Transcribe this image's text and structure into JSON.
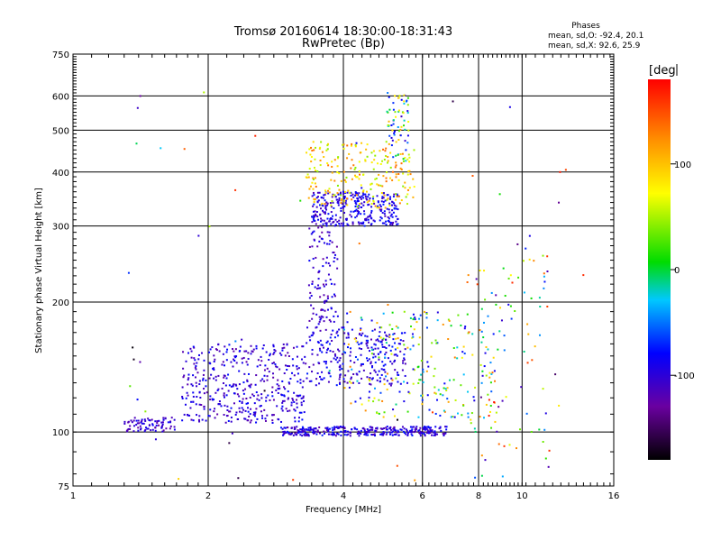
{
  "chart_data": {
    "type": "scatter",
    "title_line1": "Tromsø 20160614 18:30:00-18:31:43",
    "title_line2": "RwPretec (Bp)",
    "stats": {
      "heading": "Phases",
      "o_line": "mean, sd,O: -92.4, 20.1",
      "x_line": "mean, sd,X:  92.6, 25.9"
    },
    "xlabel": "Frequency [MHz]",
    "ylabel": "Stationary phase Virtual Height [km]",
    "x_scale": "log",
    "y_scale": "log",
    "xlim": [
      1,
      16
    ],
    "ylim": [
      75,
      750
    ],
    "xticks": [
      {
        "value": 1,
        "label": "1"
      },
      {
        "value": 2,
        "label": "2"
      },
      {
        "value": 4,
        "label": "4"
      },
      {
        "value": 6,
        "label": "6"
      },
      {
        "value": 8,
        "label": "8"
      },
      {
        "value": 10,
        "label": "10"
      },
      {
        "value": 16,
        "label": "16"
      }
    ],
    "yticks": [
      {
        "value": 75,
        "label": "75"
      },
      {
        "value": 100,
        "label": "100"
      },
      {
        "value": 200,
        "label": "200"
      },
      {
        "value": 300,
        "label": "300"
      },
      {
        "value": 400,
        "label": "400"
      },
      {
        "value": 500,
        "label": "500"
      },
      {
        "value": 600,
        "label": "600"
      },
      {
        "value": 750,
        "label": "750"
      }
    ],
    "grid": true,
    "colorbar": {
      "label": "[deg",
      "range": [
        -180,
        180
      ],
      "ticks": [
        {
          "value": 100,
          "label": "100"
        },
        {
          "value": 0,
          "label": "0"
        },
        {
          "value": -100,
          "label": "-100"
        }
      ]
    },
    "clusters": [
      {
        "name": "low-E trace",
        "x": [
          1.3,
          1.7
        ],
        "y": [
          100,
          108
        ],
        "n": 80,
        "phase": [
          -130,
          -80
        ]
      },
      {
        "name": "E-region rise",
        "x": [
          1.75,
          3.3
        ],
        "y": [
          105,
          160
        ],
        "n": 420,
        "phase": [
          -125,
          -75
        ]
      },
      {
        "name": "Es 100 km band",
        "x": [
          2.9,
          6.8
        ],
        "y": [
          98,
          103
        ],
        "n": 320,
        "phase": [
          -125,
          -70
        ]
      },
      {
        "name": "F1 150 km",
        "x": [
          3.3,
          5.5
        ],
        "y": [
          128,
          175
        ],
        "n": 260,
        "phase": [
          -120,
          -70
        ]
      },
      {
        "name": "F cusp",
        "x": [
          3.35,
          3.9
        ],
        "y": [
          175,
          320
        ],
        "n": 110,
        "phase": [
          -130,
          -80
        ]
      },
      {
        "name": "F2 trace",
        "x": [
          3.4,
          5.3
        ],
        "y": [
          300,
          360
        ],
        "n": 300,
        "phase": [
          -120,
          -70
        ]
      },
      {
        "name": "F2 X-mode",
        "x": [
          3.3,
          5.8
        ],
        "y": [
          330,
          470
        ],
        "n": 220,
        "phase": [
          40,
          140
        ]
      },
      {
        "name": "F2 top",
        "x": [
          5.0,
          5.6
        ],
        "y": [
          420,
          610
        ],
        "n": 70,
        "phase": [
          -110,
          120
        ]
      },
      {
        "name": "mid scatter",
        "x": [
          4.0,
          8.8
        ],
        "y": [
          108,
          190
        ],
        "n": 230,
        "phase": [
          -100,
          130
        ]
      },
      {
        "name": "high scatter",
        "x": [
          7.5,
          11.5
        ],
        "y": [
          78,
          260
        ],
        "n": 90,
        "phase": [
          -140,
          180
        ]
      },
      {
        "name": "sporadic",
        "x": [
          1.3,
          14.0
        ],
        "y": [
          76,
          650
        ],
        "n": 60,
        "phase": [
          -180,
          180
        ]
      }
    ]
  }
}
